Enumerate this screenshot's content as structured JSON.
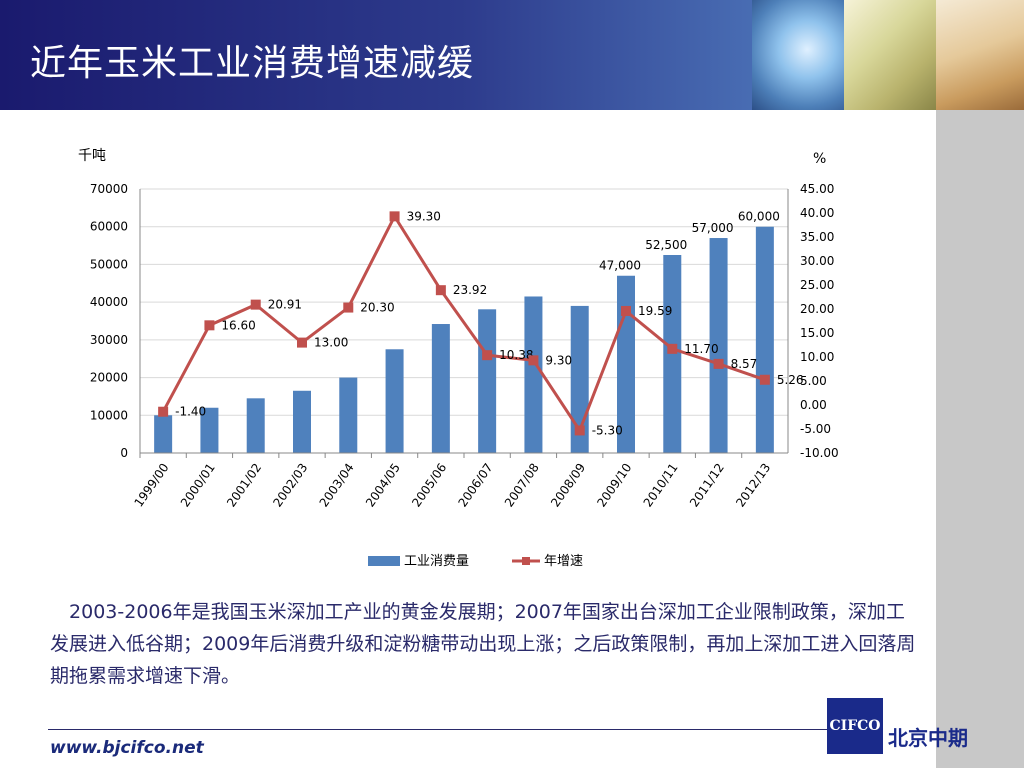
{
  "slide": {
    "title": "近年玉米工业消费增速减缓",
    "description": "2003-2006年是我国玉米深加工产业的黄金发展期；2007年国家出台深加工企业限制政策，深加工发展进入低谷期；2009年后消费升级和淀粉糖带动出现上涨；之后政策限制，再加上深加工进入回落周期拖累需求增速下滑。",
    "footer_url": "www.bjcifco.net",
    "logo_text": "CIFCO",
    "company_name": "北京中期"
  },
  "chart_data": {
    "type": "bar+line",
    "categories": [
      "1999/00",
      "2000/01",
      "2001/02",
      "2002/03",
      "2003/04",
      "2004/05",
      "2005/06",
      "2006/07",
      "2007/08",
      "2008/09",
      "2009/10",
      "2010/11",
      "2011/12",
      "2012/13"
    ],
    "y_left_label": "千吨",
    "y_right_label": "%",
    "y_left_ticks": [
      "70000",
      "60000",
      "50000",
      "40000",
      "30000",
      "20000",
      "10000",
      "0"
    ],
    "y_right_ticks": [
      "45.00",
      "40.00",
      "35.00",
      "30.00",
      "25.00",
      "20.00",
      "15.00",
      "10.00",
      "5.00",
      "0.00",
      "-5.00",
      "-10.00"
    ],
    "ylim_left": [
      0,
      70000
    ],
    "ylim_right": [
      -10,
      45
    ],
    "grid": true,
    "legend_position": "bottom",
    "series": [
      {
        "name": "工业消费量",
        "type": "bar",
        "axis": "left",
        "color": "#4f81bd",
        "values": [
          10000,
          12000,
          14500,
          16500,
          20000,
          27500,
          34200,
          38100,
          41500,
          39000,
          47000,
          52500,
          57000,
          60000
        ],
        "labels": [
          "",
          "",
          "",
          "",
          "",
          "",
          "",
          "",
          "",
          "",
          "47,000",
          "52,500",
          "57,000",
          "60,000"
        ]
      },
      {
        "name": "年增速",
        "type": "line",
        "axis": "right",
        "color": "#c0504d",
        "values": [
          -1.4,
          16.6,
          20.91,
          13.0,
          20.3,
          39.3,
          23.92,
          10.38,
          9.3,
          -5.3,
          19.59,
          11.7,
          8.57,
          5.26
        ],
        "labels": [
          "-1.40",
          "16.60",
          "20.91",
          "13.00",
          "20.30",
          "39.30",
          "23.92",
          "10.38",
          "9.30",
          "-5.30",
          "19.59",
          "11.70",
          "8.57",
          "5.26"
        ]
      }
    ]
  }
}
